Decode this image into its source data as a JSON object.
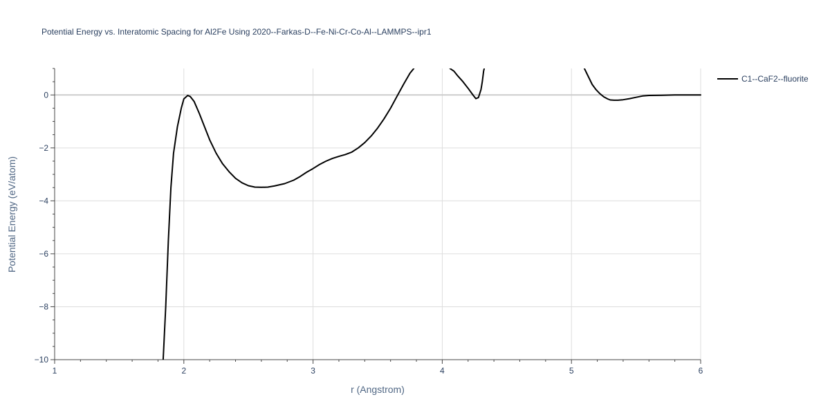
{
  "chart_data": {
    "type": "line",
    "title": "Potential Energy vs. Interatomic Spacing for Al2Fe Using 2020--Farkas-D--Fe-Ni-Cr-Co-Al--LAMMPS--ipr1",
    "xlabel": "r (Angstrom)",
    "ylabel": "Potential Energy (eV/atom)",
    "xlim": [
      1,
      6
    ],
    "ylim": [
      -10,
      1
    ],
    "x_ticks": [
      1,
      2,
      3,
      4,
      5,
      6
    ],
    "x_tick_labels": [
      "1",
      "2",
      "3",
      "4",
      "5",
      "6"
    ],
    "y_ticks": [
      -10,
      -8,
      -6,
      -4,
      -2,
      0
    ],
    "y_tick_labels": [
      "−10",
      "−8",
      "−6",
      "−4",
      "−2",
      "0"
    ],
    "grid": true,
    "legend_position": "top-right",
    "series": [
      {
        "name": "C1--CaF2--fluorite",
        "color": "#000000",
        "segments": [
          [
            [
              1.84,
              -10
            ],
            [
              1.86,
              -8
            ],
            [
              1.88,
              -5.5
            ],
            [
              1.9,
              -3.5
            ],
            [
              1.92,
              -2.2
            ],
            [
              1.95,
              -1.2
            ],
            [
              1.98,
              -0.5
            ],
            [
              2.0,
              -0.15
            ],
            [
              2.03,
              -0.02
            ],
            [
              2.05,
              -0.06
            ],
            [
              2.08,
              -0.25
            ],
            [
              2.12,
              -0.7
            ],
            [
              2.16,
              -1.2
            ],
            [
              2.2,
              -1.7
            ],
            [
              2.25,
              -2.2
            ],
            [
              2.3,
              -2.6
            ],
            [
              2.35,
              -2.9
            ],
            [
              2.4,
              -3.15
            ],
            [
              2.45,
              -3.32
            ],
            [
              2.5,
              -3.43
            ],
            [
              2.55,
              -3.48
            ],
            [
              2.6,
              -3.49
            ],
            [
              2.65,
              -3.48
            ],
            [
              2.7,
              -3.44
            ],
            [
              2.78,
              -3.35
            ],
            [
              2.85,
              -3.22
            ],
            [
              2.9,
              -3.08
            ],
            [
              2.95,
              -2.92
            ],
            [
              3.0,
              -2.78
            ],
            [
              3.05,
              -2.63
            ],
            [
              3.1,
              -2.5
            ],
            [
              3.15,
              -2.4
            ],
            [
              3.2,
              -2.32
            ],
            [
              3.25,
              -2.25
            ],
            [
              3.3,
              -2.16
            ],
            [
              3.35,
              -2.0
            ],
            [
              3.4,
              -1.8
            ],
            [
              3.45,
              -1.55
            ],
            [
              3.5,
              -1.25
            ],
            [
              3.55,
              -0.9
            ],
            [
              3.6,
              -0.5
            ],
            [
              3.65,
              -0.05
            ],
            [
              3.7,
              0.4
            ],
            [
              3.75,
              0.82
            ],
            [
              3.78,
              1.0
            ]
          ],
          [
            [
              4.06,
              1.0
            ],
            [
              4.09,
              0.9
            ],
            [
              4.12,
              0.72
            ],
            [
              4.16,
              0.5
            ],
            [
              4.2,
              0.25
            ],
            [
              4.23,
              0.05
            ],
            [
              4.25,
              -0.08
            ],
            [
              4.26,
              -0.14
            ],
            [
              4.28,
              -0.1
            ],
            [
              4.3,
              0.2
            ],
            [
              4.31,
              0.5
            ],
            [
              4.32,
              0.9
            ],
            [
              4.325,
              1.0
            ]
          ],
          [
            [
              5.1,
              1.0
            ],
            [
              5.13,
              0.7
            ],
            [
              5.16,
              0.4
            ],
            [
              5.19,
              0.2
            ],
            [
              5.22,
              0.05
            ],
            [
              5.25,
              -0.07
            ],
            [
              5.28,
              -0.15
            ],
            [
              5.3,
              -0.19
            ],
            [
              5.33,
              -0.2
            ],
            [
              5.36,
              -0.2
            ],
            [
              5.4,
              -0.18
            ],
            [
              5.45,
              -0.14
            ],
            [
              5.5,
              -0.09
            ],
            [
              5.55,
              -0.04
            ],
            [
              5.6,
              -0.02
            ],
            [
              5.7,
              -0.01
            ],
            [
              5.8,
              0.0
            ],
            [
              6.0,
              0.0
            ]
          ]
        ]
      }
    ]
  }
}
